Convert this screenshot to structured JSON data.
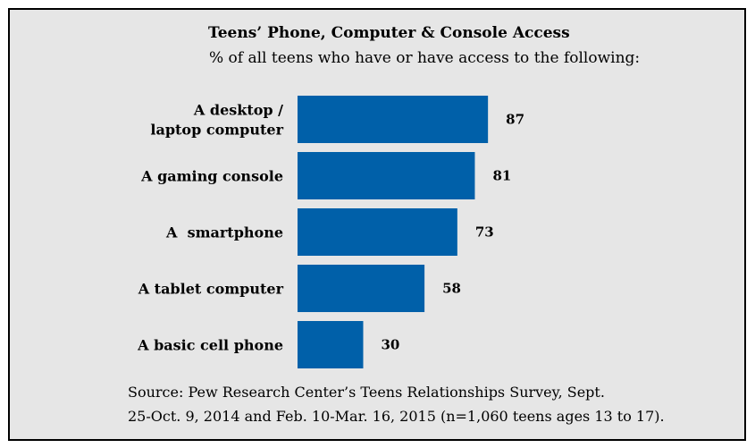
{
  "chart_data": {
    "type": "bar",
    "orientation": "horizontal",
    "title": "Teens’ Phone, Computer & Console Access",
    "subtitle": "% of all teens who have or have access to the following:",
    "categories": [
      [
        "A desktop /",
        "laptop computer"
      ],
      [
        "A gaming console"
      ],
      [
        "A  smartphone"
      ],
      [
        "A tablet computer"
      ],
      [
        "A basic cell phone"
      ]
    ],
    "values": [
      87,
      81,
      73,
      58,
      30
    ],
    "value_labels": [
      "87",
      "81",
      "73",
      "58",
      "30"
    ],
    "xlim": [
      0,
      100
    ],
    "bar_color": "#0060a9",
    "grid": false,
    "legend": "none"
  },
  "source": {
    "line1": "Source: Pew Research Center’s Teens Relationships Survey, Sept.",
    "line2": "25-Oct. 9, 2014 and Feb. 10-Mar. 16, 2015 (n=1,060 teens ages 13 to 17)."
  }
}
